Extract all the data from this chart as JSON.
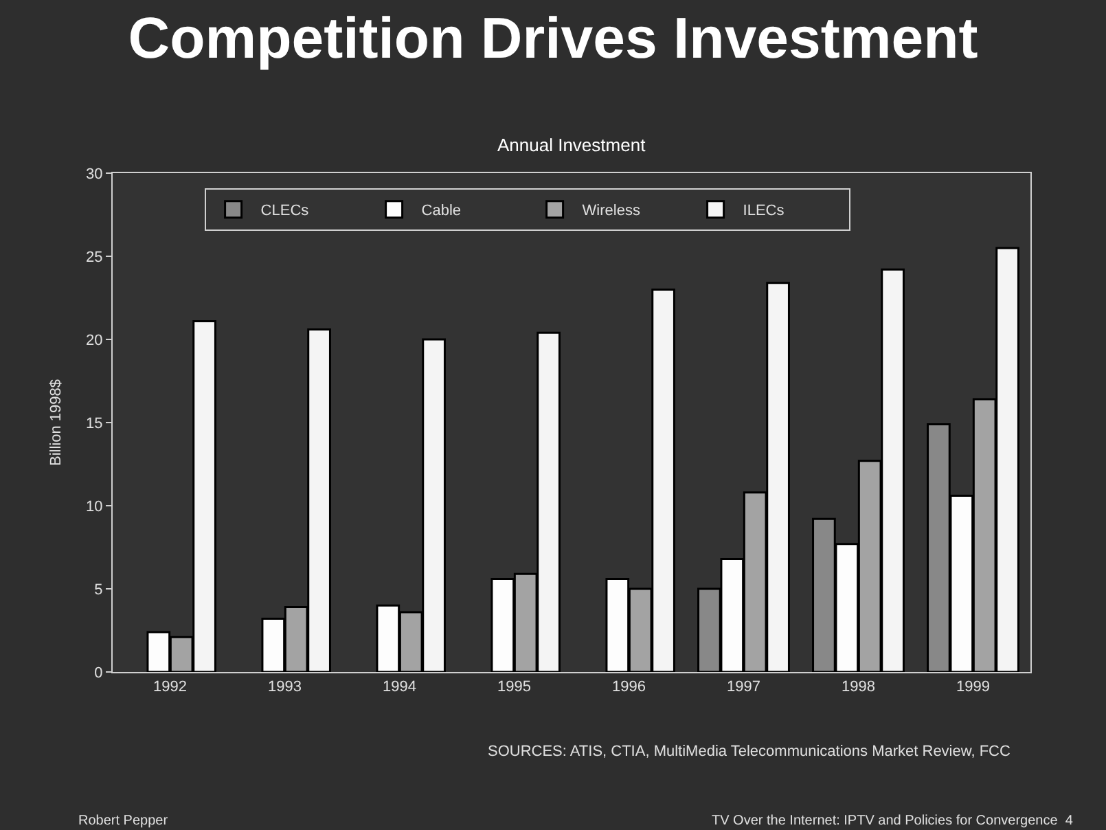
{
  "chart_data": {
    "type": "bar",
    "title": "Competition Drives Investment",
    "subtitle": "Annual Investment",
    "ylabel": "Billion 1998$",
    "categories": [
      "1992",
      "1993",
      "1994",
      "1995",
      "1996",
      "1997",
      "1998",
      "1999"
    ],
    "series": [
      {
        "name": "CLECs",
        "color": "#888888",
        "values": [
          null,
          null,
          null,
          null,
          null,
          5.0,
          9.2,
          14.9
        ]
      },
      {
        "name": "Cable",
        "color": "#fdfdfd",
        "values": [
          2.4,
          3.2,
          4.0,
          5.6,
          5.6,
          6.8,
          7.7,
          10.6
        ]
      },
      {
        "name": "Wireless",
        "color": "#a3a3a3",
        "values": [
          2.1,
          3.9,
          3.6,
          5.9,
          5.0,
          10.8,
          12.7,
          16.4
        ]
      },
      {
        "name": "ILECs",
        "color": "#f4f4f4",
        "values": [
          21.1,
          20.6,
          20.0,
          20.4,
          23.0,
          23.4,
          24.2,
          25.5
        ]
      }
    ],
    "ylim": [
      0,
      30
    ],
    "yticks": [
      0,
      5,
      10,
      15,
      20,
      25,
      30
    ],
    "grid": false,
    "legend": "top left",
    "annotations": [
      "SOURCES: ATIS, CTIA, MultiMedia Telecommunications Market Review, FCC",
      "Robert Pepper",
      "TV Over the Internet: IPTV and Policies for Convergence  4"
    ]
  }
}
